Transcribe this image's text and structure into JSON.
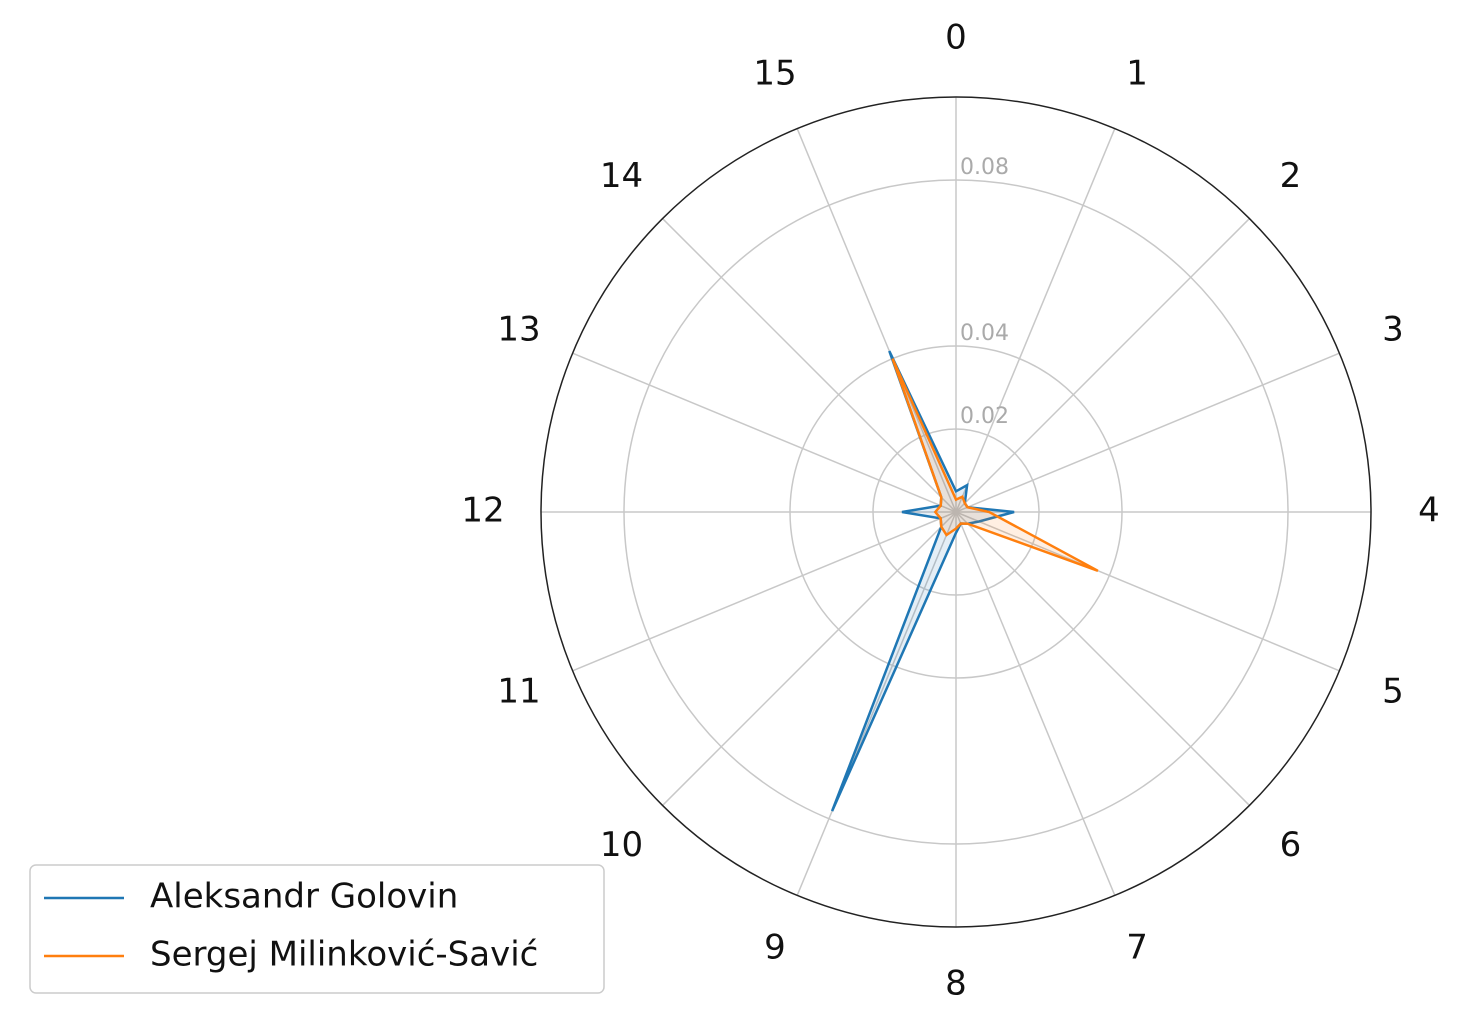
{
  "chart_data": {
    "type": "radar",
    "categories": [
      "0",
      "1",
      "2",
      "3",
      "4",
      "5",
      "6",
      "7",
      "8",
      "9",
      "10",
      "11",
      "12",
      "13",
      "14",
      "15"
    ],
    "ylim": [
      0,
      0.1
    ],
    "yticks": [
      0.02,
      0.04,
      0.08
    ],
    "grid": true,
    "legend": "lower left",
    "series": [
      {
        "name": "Aleksandr Golovin",
        "color": "#1f77b4",
        "values": [
          0.005,
          0.007,
          0.003,
          0.003,
          0.014,
          0.006,
          0.004,
          0.003,
          0.005,
          0.078,
          0.005,
          0.004,
          0.013,
          0.004,
          0.005,
          0.042
        ]
      },
      {
        "name": "Sergej Milinković-Savić",
        "color": "#ff7f0e",
        "values": [
          0.003,
          0.004,
          0.003,
          0.003,
          0.008,
          0.037,
          0.004,
          0.003,
          0.004,
          0.006,
          0.005,
          0.004,
          0.005,
          0.004,
          0.005,
          0.04
        ]
      }
    ]
  }
}
